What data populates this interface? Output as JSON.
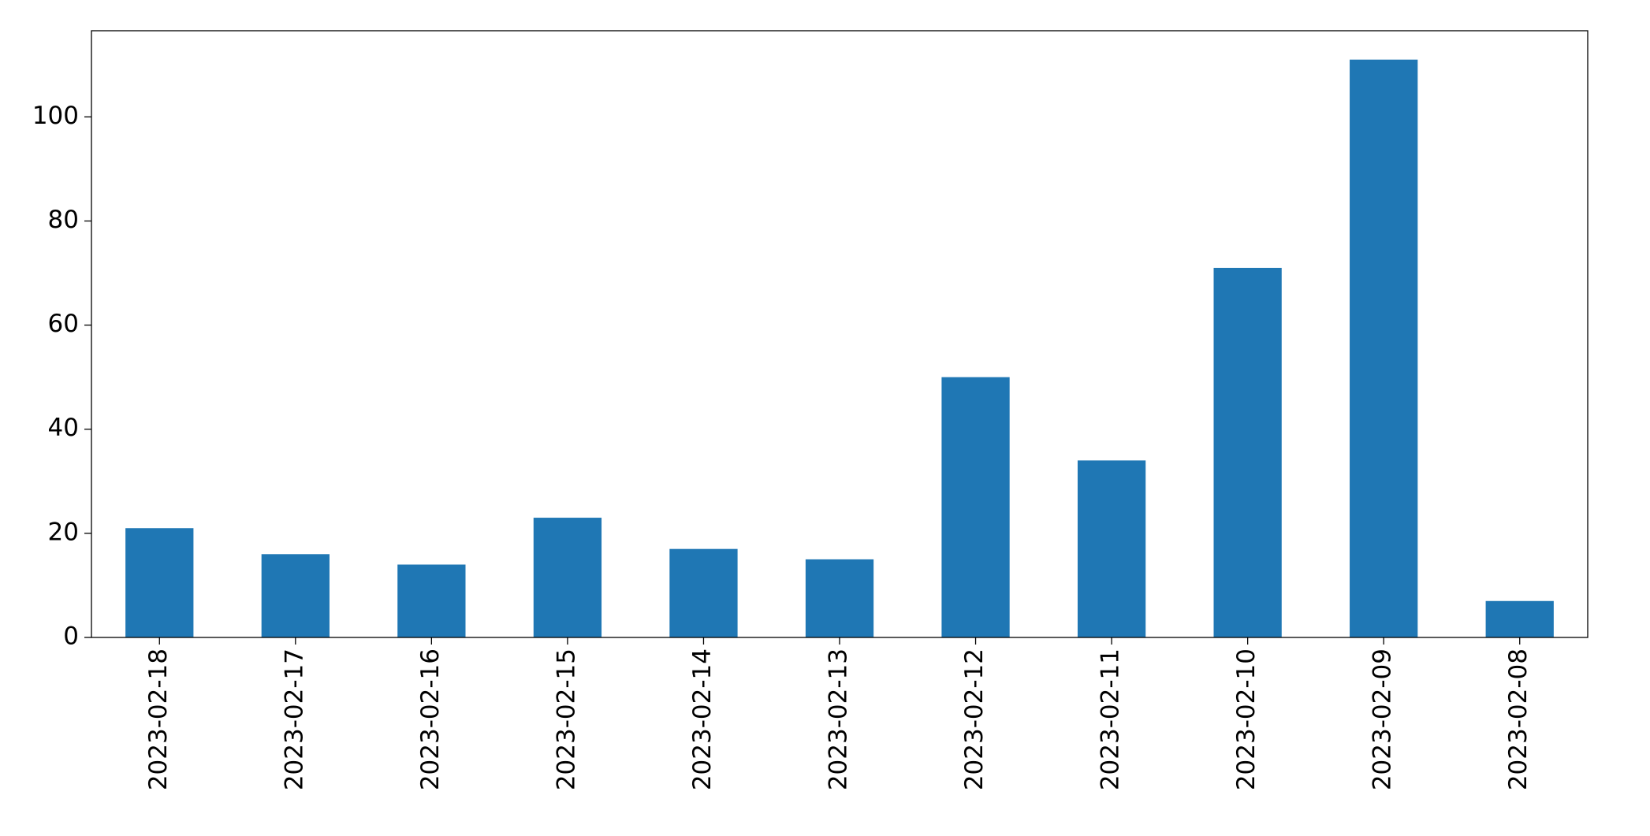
{
  "chart_data": {
    "type": "bar",
    "categories": [
      "2023-02-18",
      "2023-02-17",
      "2023-02-16",
      "2023-02-15",
      "2023-02-14",
      "2023-02-13",
      "2023-02-12",
      "2023-02-11",
      "2023-02-10",
      "2023-02-09",
      "2023-02-08"
    ],
    "values": [
      21,
      16,
      14,
      23,
      17,
      15,
      50,
      34,
      71,
      111,
      7
    ],
    "color": "#1f77b4",
    "ylim": [
      0,
      116.55
    ],
    "yticks": [
      0,
      20,
      40,
      60,
      80,
      100
    ],
    "grid": false
  }
}
